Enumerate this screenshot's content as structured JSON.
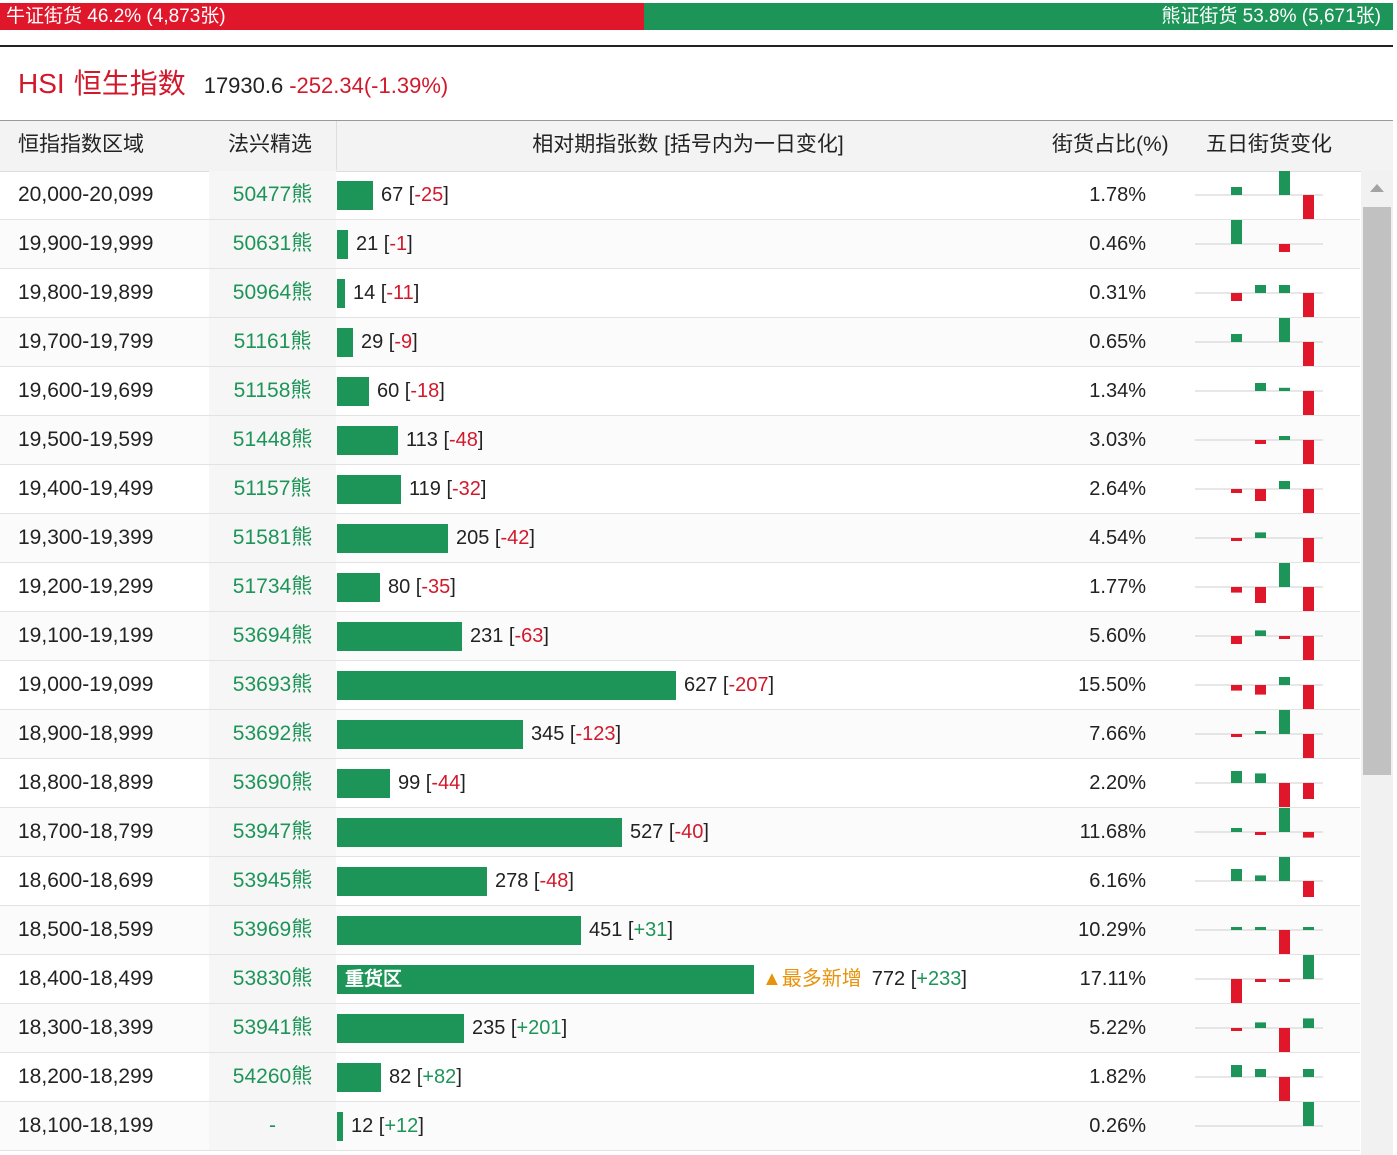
{
  "ratio": {
    "bull_label": "牛证街货 46.2% (4,873张)",
    "bear_label": "熊证街货 53.8% (5,671张)",
    "bull_color": "#e0162b",
    "bear_color": "#1e9558"
  },
  "index": {
    "code": "HSI",
    "name": "恒生指数",
    "value": "17930.6",
    "change": "-252.34(-1.39%)"
  },
  "table": {
    "headers": {
      "range": "恒指指数区域",
      "pick": "法兴精选",
      "count": "相对期指张数 [括号内为一日变化]",
      "pct": "街货占比(%)",
      "trend": "五日街货变化"
    },
    "max_count": 772,
    "rows": [
      {
        "range": "20,000-20,099",
        "pick": "50477熊",
        "count": "67",
        "delta": "-25",
        "pct": "1.78%",
        "spark": [
          0,
          1,
          0,
          3,
          -3
        ]
      },
      {
        "range": "19,900-19,999",
        "pick": "50631熊",
        "count": "21",
        "delta": "-1",
        "pct": "0.46%",
        "spark": [
          0,
          3,
          0,
          -1,
          0
        ]
      },
      {
        "range": "19,800-19,899",
        "pick": "50964熊",
        "count": "14",
        "delta": "-11",
        "pct": "0.31%",
        "spark": [
          0,
          -1,
          1,
          1,
          -3
        ]
      },
      {
        "range": "19,700-19,799",
        "pick": "51161熊",
        "count": "29",
        "delta": "-9",
        "pct": "0.65%",
        "spark": [
          0,
          1,
          0,
          3,
          -3
        ]
      },
      {
        "range": "19,600-19,699",
        "pick": "51158熊",
        "count": "60",
        "delta": "-18",
        "pct": "1.34%",
        "spark": [
          0,
          0,
          1,
          0.4,
          -3
        ]
      },
      {
        "range": "19,500-19,599",
        "pick": "51448熊",
        "count": "113",
        "delta": "-48",
        "pct": "3.03%",
        "spark": [
          0,
          0,
          -0.5,
          0.5,
          -3
        ]
      },
      {
        "range": "19,400-19,499",
        "pick": "51157熊",
        "count": "119",
        "delta": "-32",
        "pct": "2.64%",
        "spark": [
          0,
          -0.5,
          -1.5,
          1,
          -3
        ]
      },
      {
        "range": "19,300-19,399",
        "pick": "51581熊",
        "count": "205",
        "delta": "-42",
        "pct": "4.54%",
        "spark": [
          0,
          -0.3,
          0.7,
          0,
          -3
        ]
      },
      {
        "range": "19,200-19,299",
        "pick": "51734熊",
        "count": "80",
        "delta": "-35",
        "pct": "1.77%",
        "spark": [
          0,
          -0.7,
          -2,
          3,
          -3
        ]
      },
      {
        "range": "19,100-19,199",
        "pick": "53694熊",
        "count": "231",
        "delta": "-63",
        "pct": "5.60%",
        "spark": [
          0,
          -1,
          0.7,
          -0.3,
          -3
        ]
      },
      {
        "range": "19,000-19,099",
        "pick": "53693熊",
        "count": "627",
        "delta": "-207",
        "pct": "15.50%",
        "spark": [
          0,
          -0.7,
          -1.2,
          1,
          -3
        ]
      },
      {
        "range": "18,900-18,999",
        "pick": "53692熊",
        "count": "345",
        "delta": "-123",
        "pct": "7.66%",
        "spark": [
          0,
          -0.3,
          0.3,
          3,
          -3
        ]
      },
      {
        "range": "18,800-18,899",
        "pick": "53690熊",
        "count": "99",
        "delta": "-44",
        "pct": "2.20%",
        "spark": [
          0,
          1.5,
          1.2,
          -3,
          -2
        ]
      },
      {
        "range": "18,700-18,799",
        "pick": "53947熊",
        "count": "527",
        "delta": "-40",
        "pct": "11.68%",
        "spark": [
          0,
          0.5,
          -0.3,
          3,
          -0.7
        ]
      },
      {
        "range": "18,600-18,699",
        "pick": "53945熊",
        "count": "278",
        "delta": "-48",
        "pct": "6.16%",
        "spark": [
          0,
          1.5,
          0.7,
          3,
          -2
        ]
      },
      {
        "range": "18,500-18,599",
        "pick": "53969熊",
        "count": "451",
        "delta": "+31",
        "pct": "10.29%",
        "spark": [
          0,
          0.2,
          0.2,
          -3,
          0.2
        ]
      },
      {
        "range": "18,400-18,499",
        "pick": "53830熊",
        "count": "772",
        "delta": "+233",
        "pct": "17.11%",
        "spark": [
          0,
          -3,
          -0.3,
          -0.3,
          3
        ],
        "bar_label": "重货区",
        "tag": "▲最多新增"
      },
      {
        "range": "18,300-18,399",
        "pick": "53941熊",
        "count": "235",
        "delta": "+201",
        "pct": "5.22%",
        "spark": [
          0,
          -0.2,
          0.7,
          -3,
          1.2
        ]
      },
      {
        "range": "18,200-18,299",
        "pick": "54260熊",
        "count": "82",
        "delta": "+82",
        "pct": "1.82%",
        "spark": [
          0,
          1.5,
          1,
          -3,
          1
        ]
      },
      {
        "range": "18,100-18,199",
        "pick": "-",
        "count": "12",
        "delta": "+12",
        "pct": "0.26%",
        "spark": [
          0,
          0,
          0,
          0,
          3
        ]
      }
    ]
  }
}
